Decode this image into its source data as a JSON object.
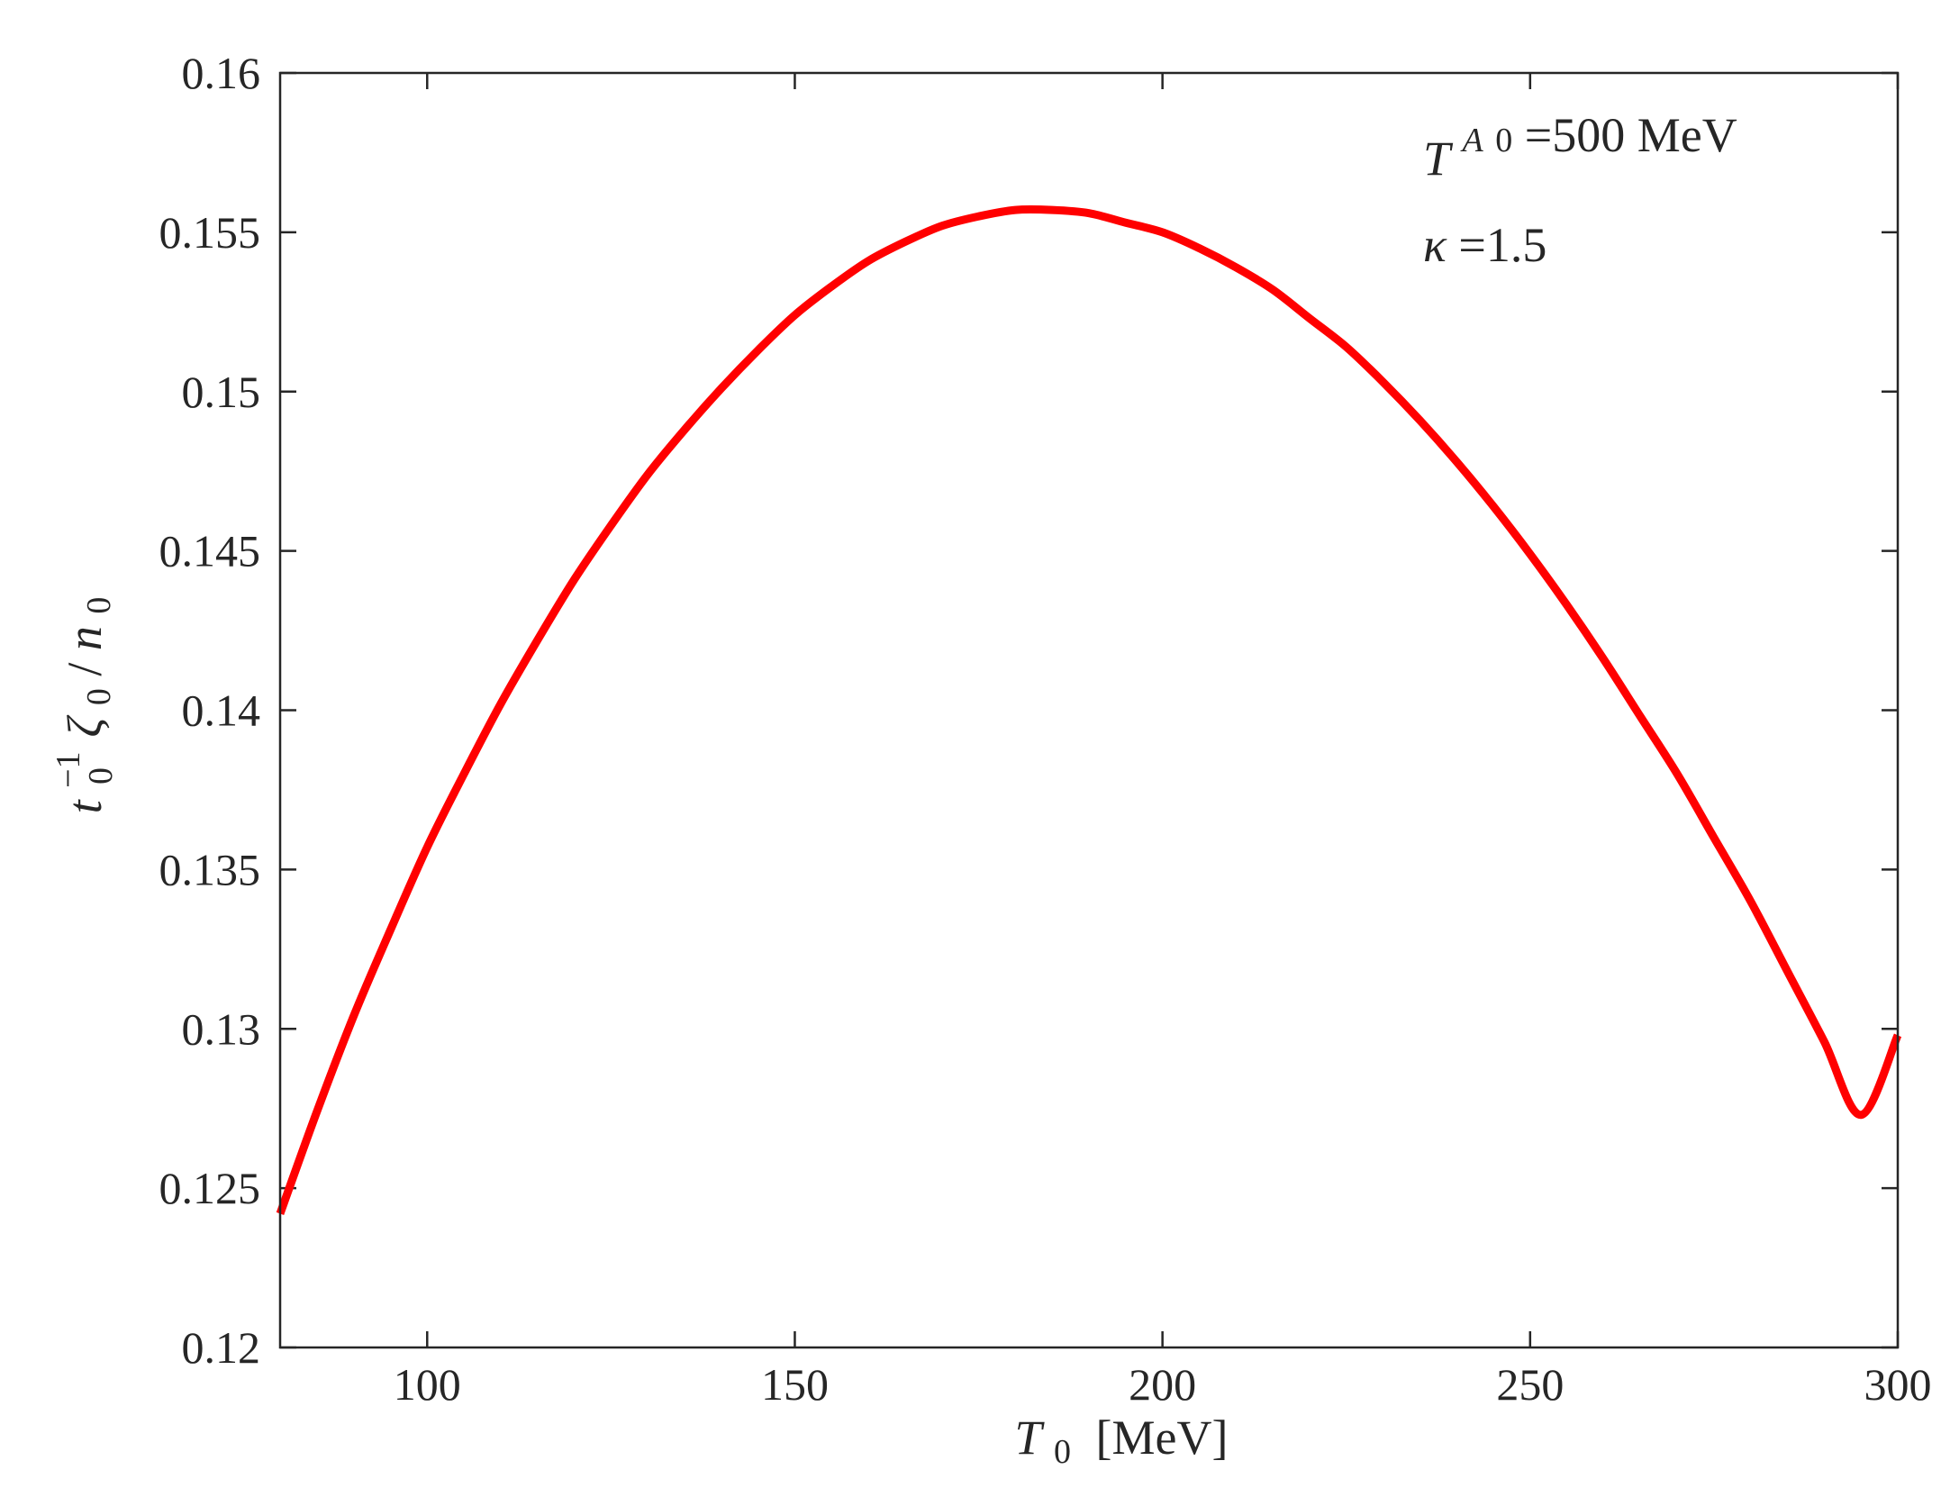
{
  "chart_data": {
    "type": "line",
    "xlabel": {
      "var": "T",
      "sub": "0",
      "unit": "[MeV]"
    },
    "ylabel": {
      "t": "t",
      "t_sub": "0",
      "t_sup": "−1",
      "zeta": "ζ",
      "zeta_sub": "0",
      "slash": "/",
      "n": "n",
      "n_sub": "0"
    },
    "xlim": [
      80,
      300
    ],
    "ylim": [
      0.12,
      0.16
    ],
    "xticks": [
      100,
      150,
      200,
      250,
      300
    ],
    "xtick_labels": [
      "100",
      "150",
      "200",
      "250",
      "300"
    ],
    "yticks": [
      0.12,
      0.125,
      0.13,
      0.135,
      0.14,
      0.145,
      0.15,
      0.155,
      0.16
    ],
    "ytick_labels": [
      "0.12",
      "0.125",
      "0.13",
      "0.135",
      "0.14",
      "0.145",
      "0.15",
      "0.155",
      "0.16"
    ],
    "grid": false,
    "box": true,
    "annotations": {
      "line1": {
        "var": "T",
        "sub": "0",
        "sup": "A",
        "text": " =500 MeV"
      },
      "line2": {
        "var": "κ",
        "text": " =1.5"
      }
    },
    "series": [
      {
        "color": "#ff0000",
        "x": [
          80,
          85,
          90,
          95,
          100,
          105,
          110,
          115,
          120,
          125,
          130,
          135,
          140,
          145,
          150,
          155,
          160,
          165,
          170,
          175,
          180,
          185,
          190,
          195,
          200,
          205,
          210,
          215,
          220,
          225,
          230,
          235,
          240,
          245,
          250,
          255,
          260,
          265,
          270,
          275,
          280,
          285,
          290,
          295,
          300
        ],
        "y": [
          0.1242,
          0.1274,
          0.1304,
          0.1331,
          0.1357,
          0.138,
          0.1402,
          0.1422,
          0.1441,
          0.1458,
          0.1474,
          0.1488,
          0.1501,
          0.1513,
          0.1524,
          0.1533,
          0.1541,
          0.1547,
          0.1552,
          0.1555,
          0.1557,
          0.1557,
          0.1556,
          0.1553,
          0.155,
          0.1545,
          0.1539,
          0.1532,
          0.1523,
          0.1514,
          0.1503,
          0.1491,
          0.1478,
          0.1464,
          0.1449,
          0.1433,
          0.1416,
          0.1398,
          0.138,
          0.136,
          0.134,
          0.1318,
          0.1296,
          0.1273,
          0.1298
        ]
      }
    ]
  }
}
